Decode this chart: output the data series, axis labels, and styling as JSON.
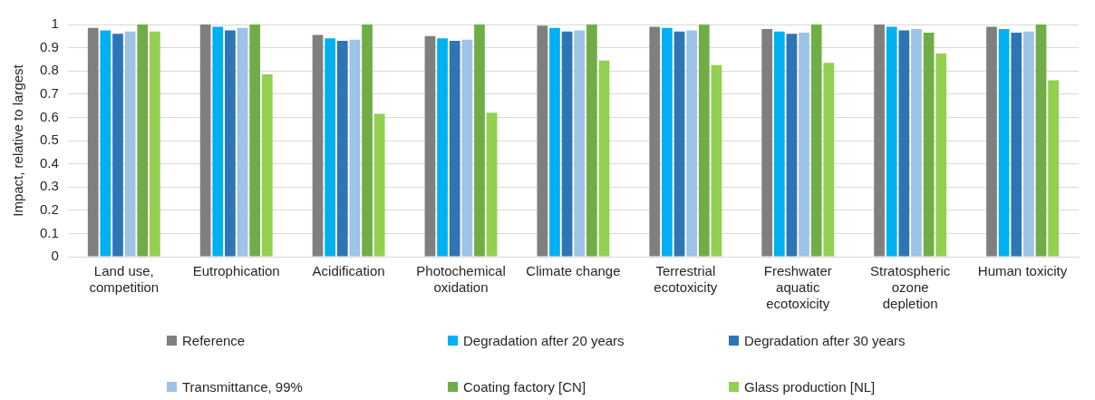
{
  "chart_data": {
    "type": "bar",
    "ylabel": "Impact, relative to largest",
    "categories": [
      "Land use, competition",
      "Eutrophication",
      "Acidification",
      "Photochemical oxidation",
      "Climate change",
      "Terrestrial ecotoxicity",
      "Freshwater aquatic ecotoxicity",
      "Stratospheric ozone depletion",
      "Human toxicity"
    ],
    "series": [
      {
        "name": "Reference",
        "color": "#7f7f7f",
        "values": [
          0.985,
          1,
          0.955,
          0.95,
          0.995,
          0.99,
          0.98,
          1,
          0.99
        ]
      },
      {
        "name": "Degradation after 20 years",
        "color": "#00b0f0",
        "values": [
          0.975,
          0.99,
          0.94,
          0.94,
          0.985,
          0.985,
          0.97,
          0.99,
          0.98
        ]
      },
      {
        "name": "Degradation after 30 years",
        "color": "#2e75b6",
        "values": [
          0.96,
          0.975,
          0.93,
          0.93,
          0.97,
          0.97,
          0.96,
          0.975,
          0.965
        ]
      },
      {
        "name": "Transmittance, 99%",
        "color": "#9dc3e6",
        "values": [
          0.97,
          0.985,
          0.935,
          0.935,
          0.975,
          0.975,
          0.965,
          0.98,
          0.97
        ]
      },
      {
        "name": "Coating factory [CN]",
        "color": "#70ad47",
        "values": [
          1,
          1,
          1,
          1,
          1,
          1,
          1,
          0.965,
          1
        ]
      },
      {
        "name": "Glass production [NL]",
        "color": "#92d050",
        "values": [
          0.97,
          0.785,
          0.615,
          0.62,
          0.845,
          0.825,
          0.835,
          0.875,
          0.76
        ]
      }
    ],
    "ylim": [
      0,
      1
    ],
    "yticks": [
      0,
      0.1,
      0.2,
      0.3,
      0.4,
      0.5,
      0.6,
      0.7,
      0.8,
      0.9,
      1
    ],
    "grid": "y",
    "legend": "bottom"
  }
}
